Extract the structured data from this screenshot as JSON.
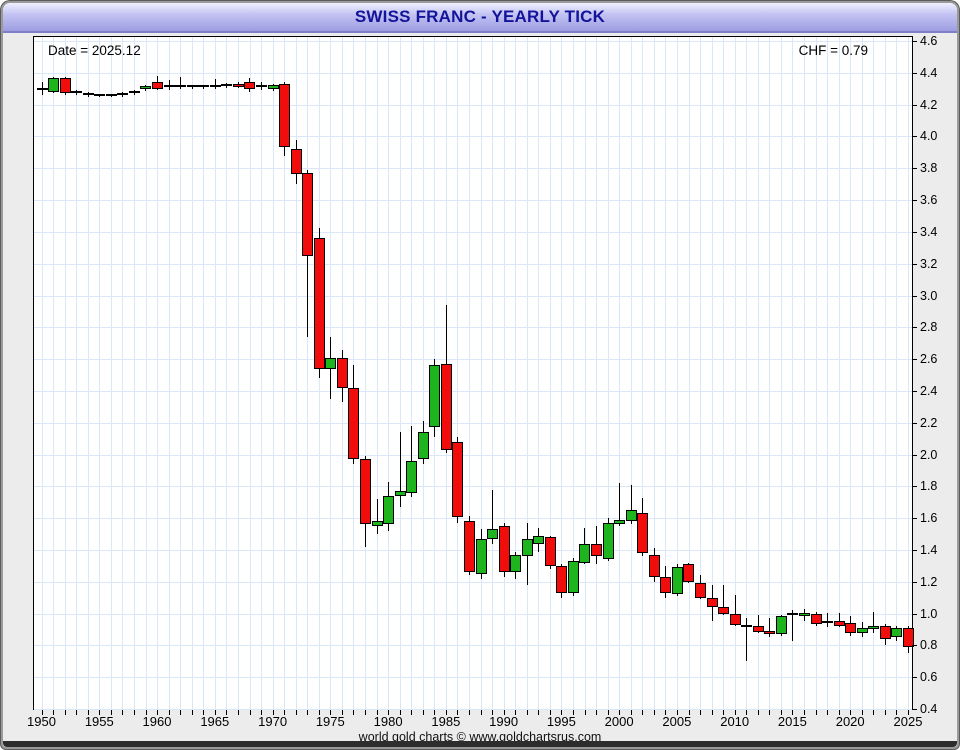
{
  "window": {
    "title": "SWISS FRANC - YEARLY TICK"
  },
  "overlays": {
    "date_label": "Date = 2025.12",
    "chf_label": "CHF = 0.79"
  },
  "footer": {
    "text": "world gold charts © www.goldchartsrus.com"
  },
  "colors": {
    "up": "#1db41d",
    "down": "#f20d0d",
    "doji": "#000000",
    "wick": "#000000",
    "grid": "#d9e7f8",
    "title_text": "#14149a",
    "titlebar_mid": "#b3b3ee",
    "window_bg": "#ececec",
    "plot_bg": "#ffffff",
    "axis_text": "#000000"
  },
  "chart_data": {
    "type": "candlestick",
    "title": "SWISS FRANC - YEARLY TICK",
    "subtitle_left": "Date = 2025.12",
    "subtitle_right": "CHF = 0.79",
    "grid": true,
    "x_axis": {
      "range": [
        1949.35,
        2025.35
      ],
      "tick_step_years": 1,
      "tick_labels": [
        "1950",
        "1955",
        "1960",
        "1965",
        "1970",
        "1975",
        "1980",
        "1985",
        "1990",
        "1995",
        "2000",
        "2005",
        "2010",
        "2015",
        "2020",
        "2025"
      ]
    },
    "y_axis": {
      "position": "right",
      "range": [
        0.4,
        4.625
      ],
      "step": 0.2,
      "tick_labels": [
        "4.6",
        "4.4",
        "4.2",
        "4.0",
        "3.8",
        "3.6",
        "3.4",
        "3.2",
        "3.0",
        "2.8",
        "2.6",
        "2.4",
        "2.2",
        "2.0",
        "1.8",
        "1.6",
        "1.4",
        "1.2",
        "1.0",
        "0.8",
        "0.6",
        "0.4"
      ]
    },
    "columns": [
      "year",
      "open",
      "high",
      "low",
      "close"
    ],
    "candles": [
      [
        1950,
        4.295,
        4.34,
        4.26,
        4.3
      ],
      [
        1951,
        4.28,
        4.375,
        4.27,
        4.37
      ],
      [
        1952,
        4.37,
        4.375,
        4.26,
        4.275
      ],
      [
        1953,
        4.275,
        4.29,
        4.26,
        4.28
      ],
      [
        1954,
        4.27,
        4.28,
        4.25,
        4.26
      ],
      [
        1955,
        4.26,
        4.27,
        4.25,
        4.255
      ],
      [
        1956,
        4.255,
        4.27,
        4.25,
        4.26
      ],
      [
        1957,
        4.26,
        4.28,
        4.25,
        4.27
      ],
      [
        1958,
        4.27,
        4.29,
        4.26,
        4.28
      ],
      [
        1959,
        4.3,
        4.325,
        4.285,
        4.32
      ],
      [
        1960,
        4.34,
        4.38,
        4.29,
        4.3
      ],
      [
        1961,
        4.31,
        4.355,
        4.29,
        4.315
      ],
      [
        1962,
        4.315,
        4.375,
        4.3,
        4.32
      ],
      [
        1963,
        4.31,
        4.325,
        4.295,
        4.315
      ],
      [
        1964,
        4.31,
        4.325,
        4.3,
        4.315
      ],
      [
        1965,
        4.315,
        4.36,
        4.3,
        4.32
      ],
      [
        1966,
        4.32,
        4.335,
        4.305,
        4.325
      ],
      [
        1967,
        4.33,
        4.345,
        4.305,
        4.315
      ],
      [
        1968,
        4.345,
        4.37,
        4.28,
        4.3
      ],
      [
        1969,
        4.315,
        4.34,
        4.29,
        4.32
      ],
      [
        1970,
        4.3,
        4.33,
        4.285,
        4.325
      ],
      [
        1971,
        4.33,
        4.345,
        3.88,
        3.935
      ],
      [
        1972,
        3.92,
        3.98,
        3.7,
        3.76
      ],
      [
        1973,
        3.77,
        3.79,
        2.74,
        3.25
      ],
      [
        1974,
        3.36,
        3.425,
        2.48,
        2.54
      ],
      [
        1975,
        2.54,
        2.74,
        2.35,
        2.61
      ],
      [
        1976,
        2.61,
        2.66,
        2.33,
        2.42
      ],
      [
        1977,
        2.42,
        2.56,
        1.94,
        1.97
      ],
      [
        1978,
        1.97,
        1.99,
        1.42,
        1.56
      ],
      [
        1979,
        1.55,
        1.72,
        1.5,
        1.58
      ],
      [
        1980,
        1.56,
        1.83,
        1.52,
        1.74
      ],
      [
        1981,
        1.74,
        2.14,
        1.67,
        1.77
      ],
      [
        1982,
        1.76,
        2.18,
        1.73,
        1.96
      ],
      [
        1983,
        1.97,
        2.21,
        1.94,
        2.14
      ],
      [
        1984,
        2.17,
        2.6,
        2.11,
        2.56
      ],
      [
        1985,
        2.57,
        2.94,
        2.01,
        2.03
      ],
      [
        1986,
        2.08,
        2.11,
        1.57,
        1.61
      ],
      [
        1987,
        1.58,
        1.615,
        1.24,
        1.26
      ],
      [
        1988,
        1.25,
        1.53,
        1.22,
        1.47
      ],
      [
        1989,
        1.47,
        1.78,
        1.44,
        1.53
      ],
      [
        1990,
        1.55,
        1.57,
        1.23,
        1.26
      ],
      [
        1991,
        1.26,
        1.39,
        1.22,
        1.37
      ],
      [
        1992,
        1.36,
        1.57,
        1.18,
        1.47
      ],
      [
        1993,
        1.44,
        1.54,
        1.39,
        1.49
      ],
      [
        1994,
        1.48,
        1.49,
        1.28,
        1.3
      ],
      [
        1995,
        1.3,
        1.31,
        1.1,
        1.13
      ],
      [
        1996,
        1.13,
        1.35,
        1.11,
        1.33
      ],
      [
        1997,
        1.32,
        1.54,
        1.31,
        1.44
      ],
      [
        1998,
        1.44,
        1.55,
        1.31,
        1.36
      ],
      [
        1999,
        1.34,
        1.6,
        1.33,
        1.57
      ],
      [
        2000,
        1.56,
        1.82,
        1.55,
        1.59
      ],
      [
        2001,
        1.58,
        1.81,
        1.56,
        1.65
      ],
      [
        2002,
        1.63,
        1.73,
        1.36,
        1.38
      ],
      [
        2003,
        1.37,
        1.41,
        1.2,
        1.23
      ],
      [
        2004,
        1.23,
        1.3,
        1.1,
        1.13
      ],
      [
        2005,
        1.12,
        1.31,
        1.11,
        1.29
      ],
      [
        2006,
        1.31,
        1.32,
        1.19,
        1.2
      ],
      [
        2007,
        1.19,
        1.24,
        1.09,
        1.1
      ],
      [
        2008,
        1.1,
        1.18,
        0.95,
        1.04
      ],
      [
        2009,
        1.04,
        1.18,
        0.99,
        1.0
      ],
      [
        2010,
        1.0,
        1.12,
        0.92,
        0.93
      ],
      [
        2011,
        0.92,
        0.975,
        0.7,
        0.925
      ],
      [
        2012,
        0.92,
        0.99,
        0.88,
        0.885
      ],
      [
        2013,
        0.89,
        0.97,
        0.855,
        0.87
      ],
      [
        2014,
        0.87,
        0.99,
        0.86,
        0.985
      ],
      [
        2015,
        0.99,
        1.02,
        0.83,
        0.995
      ],
      [
        2016,
        0.985,
        1.03,
        0.955,
        1.005
      ],
      [
        2017,
        1.0,
        1.01,
        0.92,
        0.935
      ],
      [
        2018,
        0.94,
        1.005,
        0.915,
        0.945
      ],
      [
        2019,
        0.955,
        1.005,
        0.915,
        0.92
      ],
      [
        2020,
        0.94,
        0.985,
        0.86,
        0.875
      ],
      [
        2021,
        0.875,
        0.945,
        0.85,
        0.91
      ],
      [
        2022,
        0.91,
        1.01,
        0.88,
        0.925
      ],
      [
        2023,
        0.92,
        0.935,
        0.8,
        0.84
      ],
      [
        2024,
        0.85,
        0.92,
        0.83,
        0.91
      ],
      [
        2025,
        0.91,
        0.925,
        0.75,
        0.79
      ]
    ]
  }
}
